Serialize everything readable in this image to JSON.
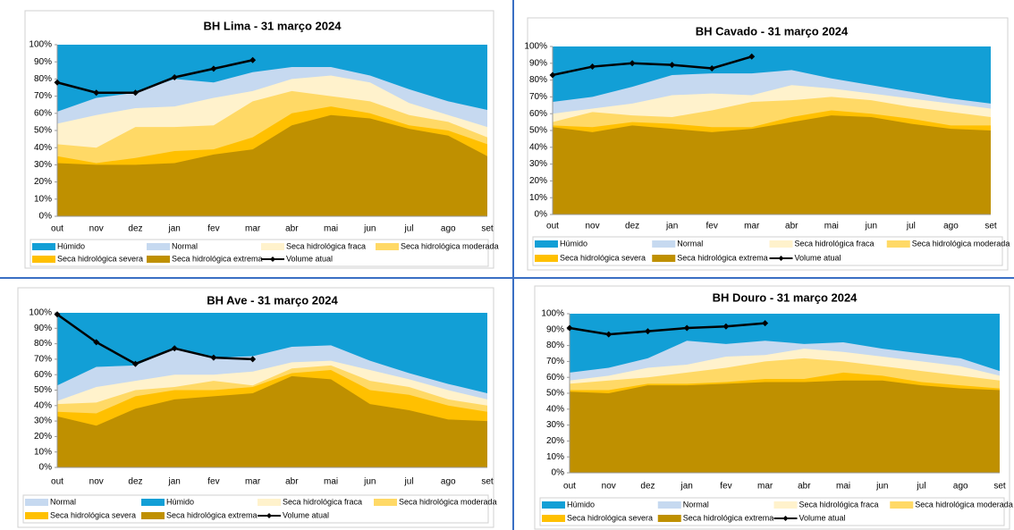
{
  "chart_data": [
    {
      "type": "area",
      "title": "BH Lima - 31 março 2024",
      "categories": [
        "out",
        "nov",
        "dez",
        "jan",
        "fev",
        "mar",
        "abr",
        "mai",
        "jun",
        "jul",
        "ago",
        "set"
      ],
      "ylim": [
        0,
        100
      ],
      "yticks": [
        {
          "value": 0,
          "label": "0%"
        },
        {
          "value": 10,
          "label": "10%"
        },
        {
          "value": 20,
          "label": "20%"
        },
        {
          "value": 30,
          "label": "30%"
        },
        {
          "value": 40,
          "label": "40%"
        },
        {
          "value": 50,
          "label": "50%"
        },
        {
          "value": 60,
          "label": "60%"
        },
        {
          "value": 70,
          "label": "70%"
        },
        {
          "value": 80,
          "label": "80%"
        },
        {
          "value": 90,
          "label": "90%"
        },
        {
          "value": 100,
          "label": "100%"
        }
      ],
      "series": [
        {
          "name": "Húmido",
          "color": "#129fd6",
          "values": [
            100,
            100,
            100,
            100,
            100,
            100,
            100,
            100,
            100,
            100,
            100,
            100
          ]
        },
        {
          "name": "Normal",
          "color": "#c6d9f0",
          "values": [
            61,
            69,
            72,
            80,
            78,
            84,
            87,
            87,
            82,
            74,
            67,
            62
          ]
        },
        {
          "name": "Seca hidrológica fraca",
          "color": "#fff2cc",
          "values": [
            54,
            59,
            63,
            64,
            69,
            73,
            80,
            82,
            78,
            66,
            59,
            52
          ]
        },
        {
          "name": "Seca hidrológica moderada",
          "color": "#ffd966",
          "values": [
            42,
            40,
            52,
            52,
            53,
            67,
            73,
            70,
            67,
            59,
            55,
            46
          ]
        },
        {
          "name": "Seca hidrológica severa",
          "color": "#ffc000",
          "values": [
            35,
            31,
            34,
            38,
            39,
            46,
            60,
            64,
            60,
            53,
            50,
            42
          ]
        },
        {
          "name": "Seca hidrológica extrema",
          "color": "#bf9000",
          "values": [
            31,
            30,
            30,
            31,
            36,
            39,
            53,
            59,
            57,
            51,
            47,
            35
          ]
        },
        {
          "name": "Volume atual",
          "color": "#000000",
          "type": "line",
          "values": [
            78,
            72,
            72,
            81,
            86,
            91,
            null,
            null,
            null,
            null,
            null,
            null
          ]
        }
      ]
    },
    {
      "type": "area",
      "title": "BH Cavado - 31 março 2024",
      "categories": [
        "out",
        "nov",
        "dez",
        "jan",
        "fev",
        "mar",
        "abr",
        "mai",
        "jun",
        "jul",
        "ago",
        "set"
      ],
      "ylim": [
        0,
        100
      ],
      "yticks": [
        {
          "value": 0,
          "label": "0%"
        },
        {
          "value": 10,
          "label": "10%"
        },
        {
          "value": 20,
          "label": "20%"
        },
        {
          "value": 30,
          "label": "30%"
        },
        {
          "value": 40,
          "label": "40%"
        },
        {
          "value": 50,
          "label": "50%"
        },
        {
          "value": 60,
          "label": "60%"
        },
        {
          "value": 70,
          "label": "70%"
        },
        {
          "value": 80,
          "label": "80%"
        },
        {
          "value": 90,
          "label": "90%"
        },
        {
          "value": 100,
          "label": "100%"
        }
      ],
      "series": [
        {
          "name": "Húmido",
          "color": "#129fd6",
          "values": [
            100,
            100,
            100,
            100,
            100,
            100,
            100,
            100,
            100,
            100,
            100,
            100
          ]
        },
        {
          "name": "Normal",
          "color": "#c6d9f0",
          "values": [
            67,
            70,
            76,
            83,
            84,
            84,
            86,
            81,
            77,
            73,
            69,
            66
          ]
        },
        {
          "name": "Seca hidrológica fraca",
          "color": "#fff2cc",
          "values": [
            60,
            63,
            66,
            71,
            72,
            71,
            77,
            75,
            72,
            69,
            66,
            63
          ]
        },
        {
          "name": "Seca hidrológica moderada",
          "color": "#ffd966",
          "values": [
            55,
            61,
            59,
            58,
            62,
            67,
            68,
            70,
            68,
            64,
            61,
            58
          ]
        },
        {
          "name": "Seca hidrológica severa",
          "color": "#ffc000",
          "values": [
            53,
            52,
            55,
            54,
            52,
            52,
            58,
            62,
            60,
            57,
            53,
            53
          ]
        },
        {
          "name": "Seca hidrológica extrema",
          "color": "#bf9000",
          "values": [
            52,
            49,
            53,
            51,
            49,
            51,
            55,
            59,
            58,
            54,
            51,
            50
          ]
        },
        {
          "name": "Volume atual",
          "color": "#000000",
          "type": "line",
          "values": [
            83,
            88,
            90,
            89,
            87,
            94,
            null,
            null,
            null,
            null,
            null,
            null
          ]
        }
      ]
    },
    {
      "type": "area",
      "title": "BH Ave - 31 março 2024",
      "categories": [
        "out",
        "nov",
        "dez",
        "jan",
        "fev",
        "mar",
        "abr",
        "mai",
        "jun",
        "jul",
        "ago",
        "set"
      ],
      "ylim": [
        0,
        100
      ],
      "yticks": [
        {
          "value": 0,
          "label": "0%"
        },
        {
          "value": 10,
          "label": "10%"
        },
        {
          "value": 20,
          "label": "20%"
        },
        {
          "value": 30,
          "label": "30%"
        },
        {
          "value": 40,
          "label": "40%"
        },
        {
          "value": 50,
          "label": "50%"
        },
        {
          "value": 60,
          "label": "60%"
        },
        {
          "value": 70,
          "label": "70%"
        },
        {
          "value": 80,
          "label": "80%"
        },
        {
          "value": 90,
          "label": "90%"
        },
        {
          "value": 100,
          "label": "100%"
        }
      ],
      "series": [
        {
          "name": "Normal",
          "color": "#c6d9f0",
          "values": [
            53,
            65,
            66,
            77,
            71,
            72,
            78,
            79,
            69,
            61,
            54,
            48
          ]
        },
        {
          "name": "Húmido",
          "color": "#129fd6",
          "values": [
            100,
            100,
            100,
            100,
            100,
            100,
            100,
            100,
            100,
            100,
            100,
            100
          ]
        },
        {
          "name": "Seca hidrológica fraca",
          "color": "#fff2cc",
          "values": [
            43,
            52,
            56,
            60,
            60,
            62,
            68,
            69,
            63,
            57,
            50,
            44
          ]
        },
        {
          "name": "Seca hidrológica moderada",
          "color": "#ffd966",
          "values": [
            41,
            42,
            50,
            52,
            56,
            53,
            64,
            66,
            56,
            52,
            44,
            40
          ]
        },
        {
          "name": "Seca hidrológica severa",
          "color": "#ffc000",
          "values": [
            36,
            35,
            46,
            50,
            50,
            52,
            61,
            63,
            50,
            47,
            40,
            36
          ]
        },
        {
          "name": "Seca hidrológica extrema",
          "color": "#bf9000",
          "values": [
            33,
            27,
            38,
            44,
            46,
            48,
            59,
            57,
            41,
            37,
            31,
            30
          ]
        },
        {
          "name": "Volume atual",
          "color": "#000000",
          "type": "line",
          "values": [
            99,
            81,
            67,
            77,
            71,
            70,
            null,
            null,
            null,
            null,
            null,
            null
          ]
        }
      ]
    },
    {
      "type": "area",
      "title": "BH Douro - 31 março 2024",
      "categories": [
        "out",
        "nov",
        "dez",
        "jan",
        "fev",
        "mar",
        "abr",
        "mai",
        "jun",
        "jul",
        "ago",
        "set"
      ],
      "ylim": [
        0,
        100
      ],
      "yticks": [
        {
          "value": 0,
          "label": "0%"
        },
        {
          "value": 10,
          "label": "10%"
        },
        {
          "value": 20,
          "label": "20%"
        },
        {
          "value": 30,
          "label": "30%"
        },
        {
          "value": 40,
          "label": "40%"
        },
        {
          "value": 50,
          "label": "50%"
        },
        {
          "value": 60,
          "label": "60%"
        },
        {
          "value": 70,
          "label": "70%"
        },
        {
          "value": 80,
          "label": "80%"
        },
        {
          "value": 90,
          "label": "90%"
        },
        {
          "value": 100,
          "label": "100%"
        }
      ],
      "series": [
        {
          "name": "Húmido",
          "color": "#129fd6",
          "values": [
            100,
            100,
            100,
            100,
            100,
            100,
            100,
            100,
            100,
            100,
            100,
            100
          ]
        },
        {
          "name": "Normal",
          "color": "#c6d9f0",
          "values": [
            63,
            66,
            72,
            83,
            81,
            83,
            81,
            82,
            78,
            75,
            72,
            64
          ]
        },
        {
          "name": "Seca hidrológica fraca",
          "color": "#fff2cc",
          "values": [
            58,
            61,
            66,
            68,
            73,
            74,
            78,
            76,
            73,
            70,
            67,
            61
          ]
        },
        {
          "name": "Seca hidrológica moderada",
          "color": "#ffd966",
          "values": [
            56,
            58,
            60,
            63,
            66,
            70,
            72,
            70,
            67,
            64,
            61,
            58
          ]
        },
        {
          "name": "Seca hidrológica severa",
          "color": "#ffc000",
          "values": [
            52,
            52,
            56,
            56,
            57,
            59,
            59,
            63,
            61,
            57,
            55,
            53
          ]
        },
        {
          "name": "Seca hidrológica extrema",
          "color": "#bf9000",
          "values": [
            51,
            50,
            55,
            55,
            56,
            57,
            57,
            58,
            58,
            55,
            53,
            52
          ]
        },
        {
          "name": "Volume atual",
          "color": "#000000",
          "type": "line",
          "values": [
            91,
            87,
            89,
            91,
            92,
            94,
            null,
            null,
            null,
            null,
            null,
            null
          ]
        }
      ]
    }
  ]
}
